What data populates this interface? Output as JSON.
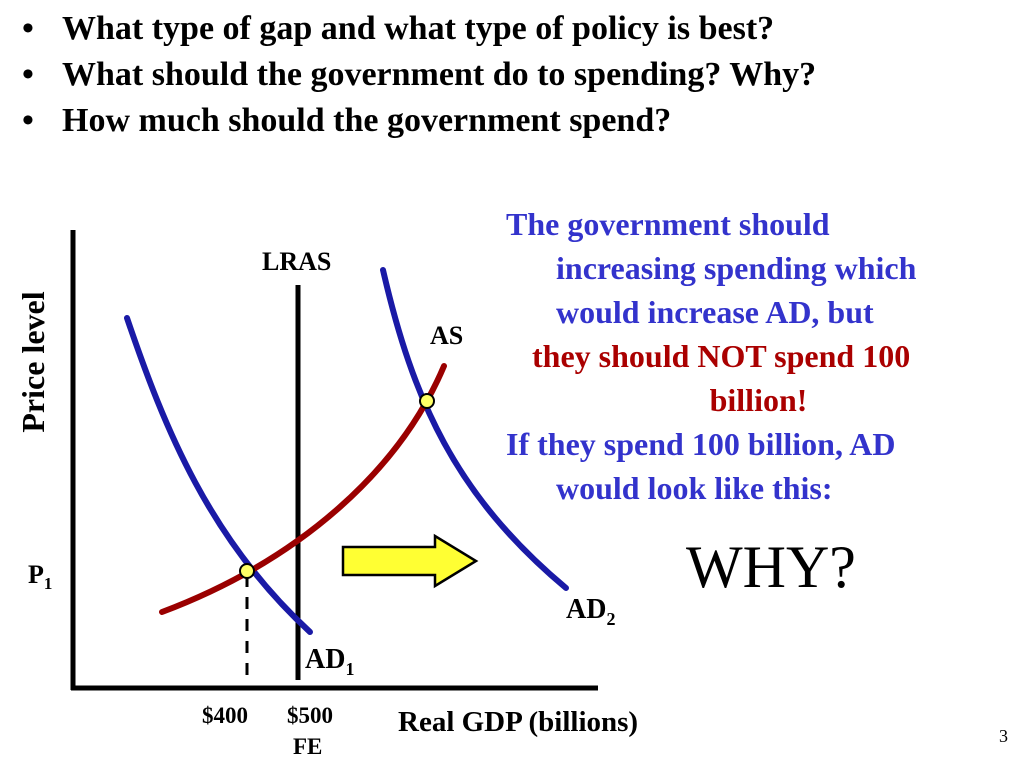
{
  "bullets": [
    "What type of gap and what type of policy is best?",
    "What should the government do to spending? Why?",
    "How much should the government spend?"
  ],
  "bullet_marker": "•",
  "diagram": {
    "y_axis_label": "Price level",
    "x_axis_label": "Real GDP (billions)",
    "lras_label": "LRAS",
    "as_label": "AS",
    "ad1_label": "AD",
    "ad1_sub": "1",
    "ad2_label": "AD",
    "ad2_sub": "2",
    "p1_label": "P",
    "p1_sub": "1",
    "x_tick_1": "$400",
    "x_tick_2": "$500",
    "x_tick_2_sub": "FE",
    "colors": {
      "ad_curves": "#1a1aa6",
      "as_curve": "#9a0000",
      "arrow_fill": "#ffff33",
      "point_fill": "#ffff66"
    }
  },
  "callout": {
    "line1": "The government should",
    "line2": "increasing spending which",
    "line3": "would increase AD, but",
    "line4": "they should NOT spend 100",
    "line5": "billion!",
    "line6": "If they spend 100 billion, AD",
    "line7": "would look like this:"
  },
  "why_text": "WHY?",
  "slide_number": "3"
}
